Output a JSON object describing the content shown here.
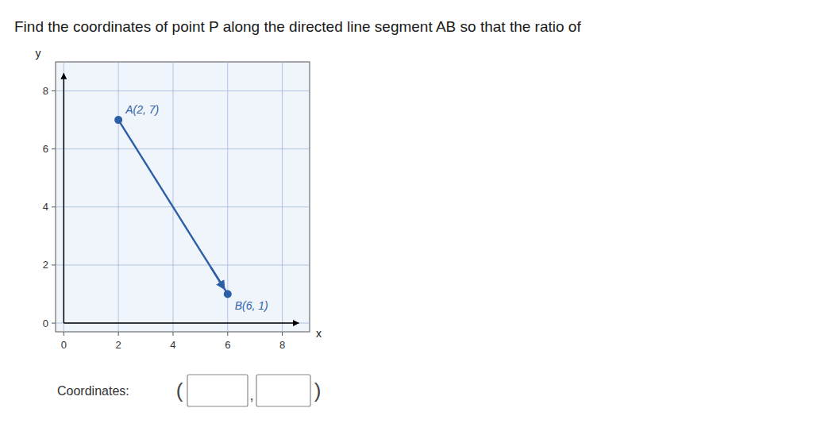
{
  "chart_data": {
    "type": "line",
    "title": "Find the coordinates of point P along the directed line segment AB so that the ratio of",
    "x": [
      2,
      6
    ],
    "values": [
      7,
      1
    ],
    "value_labels": [
      "A(2, 7)",
      "B(6, 1)"
    ],
    "color": "#2d5fa8",
    "marker": "circle",
    "xlim": [
      -0.3,
      9.0
    ],
    "ylim": [
      -0.3,
      9.0
    ],
    "xticks": [
      0,
      2,
      4,
      6,
      8
    ],
    "yticks": [
      0,
      2,
      4,
      6,
      8
    ],
    "grid": true,
    "xlabel": "x",
    "ylabel": "y",
    "annotations": [
      "Coordinates:",
      "(",
      ",",
      ")"
    ]
  }
}
